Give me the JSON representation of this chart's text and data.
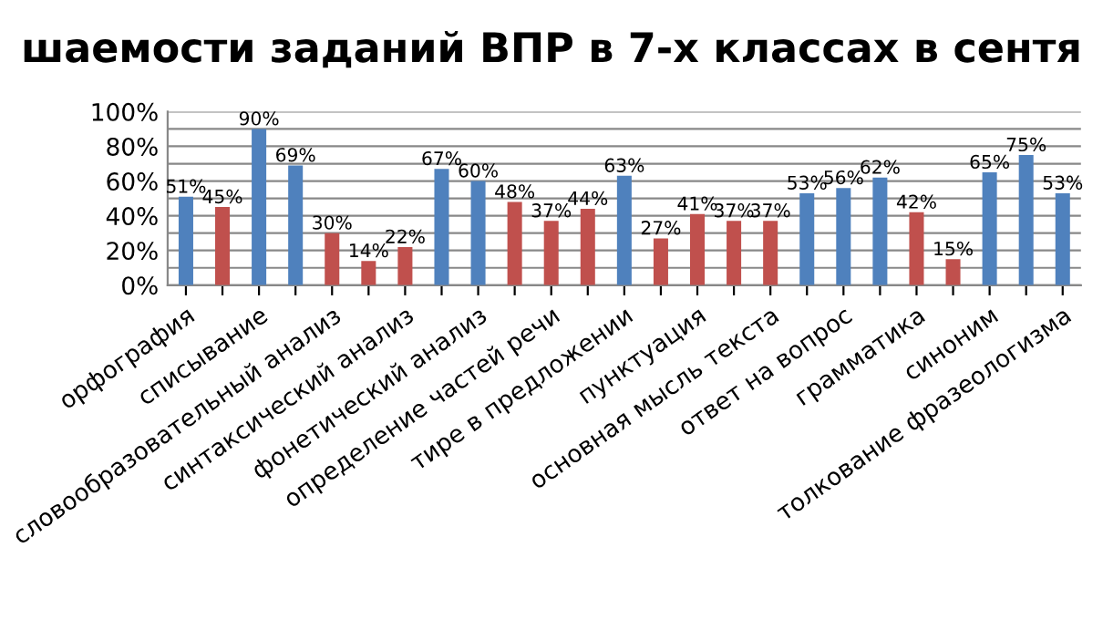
{
  "chart_data": {
    "type": "bar",
    "title": "шаемости заданий ВПР в 7-х классах в сентя",
    "categories": [
      "орфография",
      null,
      "списывание",
      null,
      "словообразовательный анализ",
      null,
      "синтаксический анализ",
      null,
      "фонетический анализ",
      null,
      "определение частей речи",
      null,
      "тире в предложении",
      null,
      "пунктуация",
      null,
      "основная мысль текста",
      null,
      "ответ на вопрос",
      null,
      "грамматика",
      null,
      "синоним",
      null,
      "толкование фразеологизма"
    ],
    "values": [
      51,
      45,
      90,
      69,
      30,
      14,
      22,
      67,
      60,
      48,
      37,
      44,
      63,
      27,
      41,
      37,
      37,
      53,
      56,
      62,
      42,
      15,
      65,
      75,
      53
    ],
    "colors": [
      "#4f81bd",
      "#c0504d",
      "#4f81bd",
      "#4f81bd",
      "#c0504d",
      "#c0504d",
      "#c0504d",
      "#4f81bd",
      "#4f81bd",
      "#c0504d",
      "#c0504d",
      "#c0504d",
      "#4f81bd",
      "#c0504d",
      "#c0504d",
      "#c0504d",
      "#c0504d",
      "#4f81bd",
      "#4f81bd",
      "#4f81bd",
      "#c0504d",
      "#c0504d",
      "#4f81bd",
      "#4f81bd",
      "#4f81bd"
    ],
    "value_labels": [
      "51%",
      "45%",
      "90%",
      "69%",
      "30%",
      "14%",
      "22%",
      "67%",
      "60%",
      "48%",
      "37%",
      "44%",
      "63%",
      "27%",
      "41%",
      "37%",
      "37%",
      "53%",
      "56%",
      "62%",
      "42%",
      "15%",
      "65%",
      "75%",
      "53%"
    ],
    "ylim": [
      0,
      100
    ],
    "yticks": [
      {
        "value": 0,
        "label": "0%"
      },
      {
        "value": 10,
        "label": null
      },
      {
        "value": 20,
        "label": "20%"
      },
      {
        "value": 30,
        "label": null
      },
      {
        "value": 40,
        "label": "40%"
      },
      {
        "value": 50,
        "label": null
      },
      {
        "value": 60,
        "label": "60%"
      },
      {
        "value": 70,
        "label": null
      },
      {
        "value": 80,
        "label": "80%"
      },
      {
        "value": 90,
        "label": null
      },
      {
        "value": 100,
        "label": "100%"
      }
    ],
    "grid": "y"
  }
}
